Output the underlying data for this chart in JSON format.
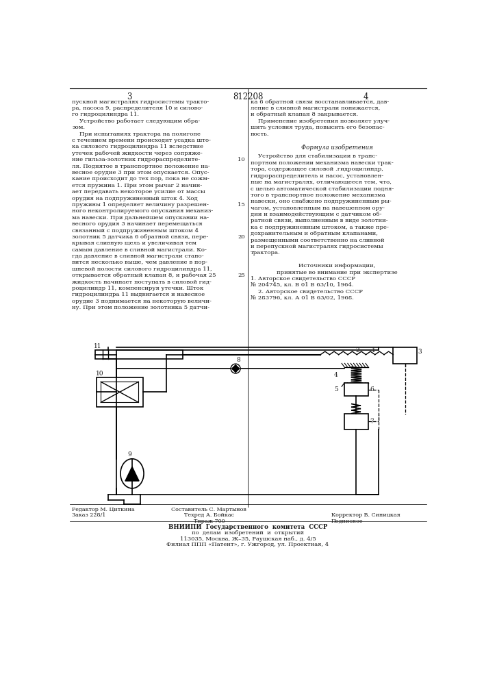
{
  "patent_number": "812208",
  "page_numbers": [
    "3",
    "4"
  ],
  "bg_color": "#ffffff",
  "text_color": "#1a1a1a",
  "line_color": "#000000",
  "col1_text": [
    "пускной магистралях гидросистемы тракто-",
    "ра, насоса 9, распределителя 10 и силово-",
    "го гидроцилиндра 11.",
    "    Устройство работает следующим обра-",
    "зом.",
    "    При испытаниях трактора на полигоне",
    "с течением времени происходит усадка што-",
    "ка силового гидроцилиндра 11 вследствие",
    "утечек рабочей жидкости через сопряже-",
    "ние гильза-золотник гидрораспределите-",
    "ля. Поднятое в транспортное положение на-",
    "весное орудие 3 при этом опускается. Опус-",
    "кание происходит до тех пор, пока не сожм-",
    "ется пружина 1. При этом рычаг 2 начин-",
    "ает передавать некоторое усилие от массы",
    "орудия на подпружиненный шток 4. Ход",
    "пружины 1 определяет величину разрешен-",
    "ного неконтролируемого опускания механиз-",
    "ма навески. При дальнейшем опускании на-",
    "весного орудия 3 начинает перемещаться",
    "связанный с подпружиненным штоком 4",
    "золотник 5 датчика 6 обратной связи, пере-",
    "крывая сливную щель и увеличивая тем",
    "самым давление в сливной магистрали. Ко-",
    "гда давление в сливной магистрали стано-",
    "вится несколько выше, чем давление в пор-",
    "шневой полости силового гидроцилиндра 11,",
    "открывается обратный клапан 8, и рабочая 25",
    "жидкость начинает поступать в силовой гид-",
    "роцилиндр 11, компенсируя утечки. Шток",
    "гидроцилиндра 11 выдвигается и навесное",
    "орудие 3 поднимается на некоторую величи-",
    "ну. При этом положение золотника 5 датчи-"
  ],
  "col2_text_plain": [
    "ка 6 обратной связи восстанавливается, дав-",
    "ление в сливной магистрали понижается,",
    "и обратный клапан 8 закрывается.",
    "    Применение изобретения позволяет улуч-",
    "шить условия труда, повысить его безопас-",
    "ность."
  ],
  "col2_formula_header": "Формула изобретения",
  "col2_formula_text": [
    "    Устройство для стабилизации в транс-",
    "портном положении механизма навески трак-",
    "тора, содержащее силовой .гидроцилиндр,",
    "гидрораспределитель и насос, установлен-",
    "ные на магистралях, отличающееся тем, что,",
    "с целью автоматической стабилизации подня-",
    "того в транспортное положение механизма",
    "навески, оно снабжено подпружиненным ры-",
    "чагом, установленным на навешенном ору-",
    "дии и взаимодействующим с датчиком об-",
    "ратной связи, выполненным в виде золотни-",
    "ка с подпружиненным штоком, а также пре-",
    "дохранительным и обратным клапанами,",
    "размещенными соответственно на сливной",
    "и перепускной магистралях гидросистемы",
    "трактора."
  ],
  "col2_sources_header1": "Источники информации,",
  "col2_sources_header2": "принятые во внимание при экспертизе",
  "col2_sources": [
    "1. Авторское свидетельство СССР",
    "№ 204745, кл. В 01 В 63/10, 1964.",
    "    2. Авторское свидетельство СССР",
    "№ 283796, кл. А 01 В 63/02, 1968."
  ],
  "line_numbers_col1": {
    "10": 9,
    "15": 16,
    "20": 21,
    "25": 27
  },
  "footer_left1": "Редактор М. Циткина",
  "footer_left2": "Заказ 228/1",
  "footer_mid1": "Составитель С. Мартынов",
  "footer_mid2": "Техред А. Бойкас",
  "footer_mid3": "Тираж 700",
  "footer_right2": "Корректор В. Синицкая",
  "footer_right3": "Подписное",
  "footer_vniip1": "ВНИИПИ  Государственного  комитета  СССР",
  "footer_vniip2": "по  делам  изобретений  и  открытий",
  "footer_vniip3": "113035, Москва, Ж–35, Раушская наб., д. 4/5",
  "footer_vniip4": "Филиал ППП «Патент», г. Ужгород, ул. Проектная, 4"
}
